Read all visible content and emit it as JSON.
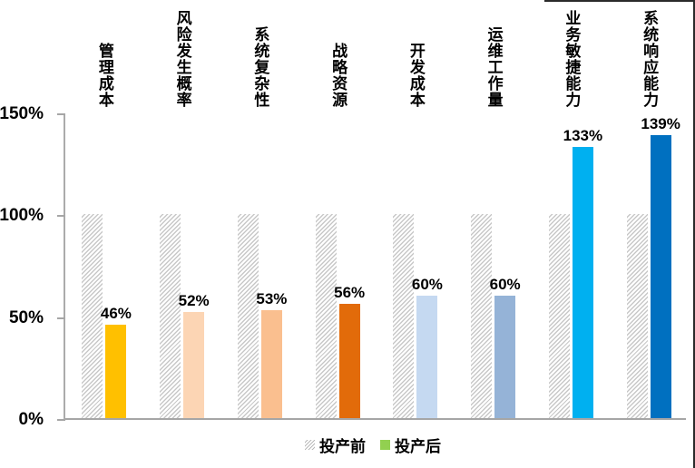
{
  "chart_data": {
    "type": "bar",
    "title": "",
    "categories": [
      "管理成本",
      "风险发生概率",
      "系统复杂性",
      "战略资源",
      "开发成本",
      "运维工作量",
      "业务敏捷能力",
      "系统响应能力"
    ],
    "series": [
      {
        "name": "投产前",
        "values": [
          100,
          100,
          100,
          100,
          100,
          100,
          100,
          100
        ],
        "fill": "hatched",
        "legend_color": "#c8c8c8"
      },
      {
        "name": "投产后",
        "values": [
          46,
          52,
          53,
          56,
          60,
          60,
          133,
          139
        ],
        "colors": [
          "#FFC000",
          "#FCD5B4",
          "#FABF8F",
          "#E26B0A",
          "#C5D9F1",
          "#95B3D7",
          "#00B0F0",
          "#0070C0"
        ],
        "legend_color": "#92D050"
      }
    ],
    "data_labels": [
      "46%",
      "52%",
      "53%",
      "56%",
      "60%",
      "60%",
      "133%",
      "139%"
    ],
    "y_ticks": [
      {
        "label": "0%",
        "value": 0
      },
      {
        "label": "50%",
        "value": 50
      },
      {
        "label": "100%",
        "value": 100
      },
      {
        "label": "150%",
        "value": 150
      }
    ],
    "ylim": [
      0,
      150
    ],
    "xlabel": "",
    "ylabel": "",
    "grid": false,
    "legend_position": "bottom",
    "axis_color": "#a6a6a6",
    "hatch_color": "#c8c8c8",
    "background": "#ffffff"
  }
}
